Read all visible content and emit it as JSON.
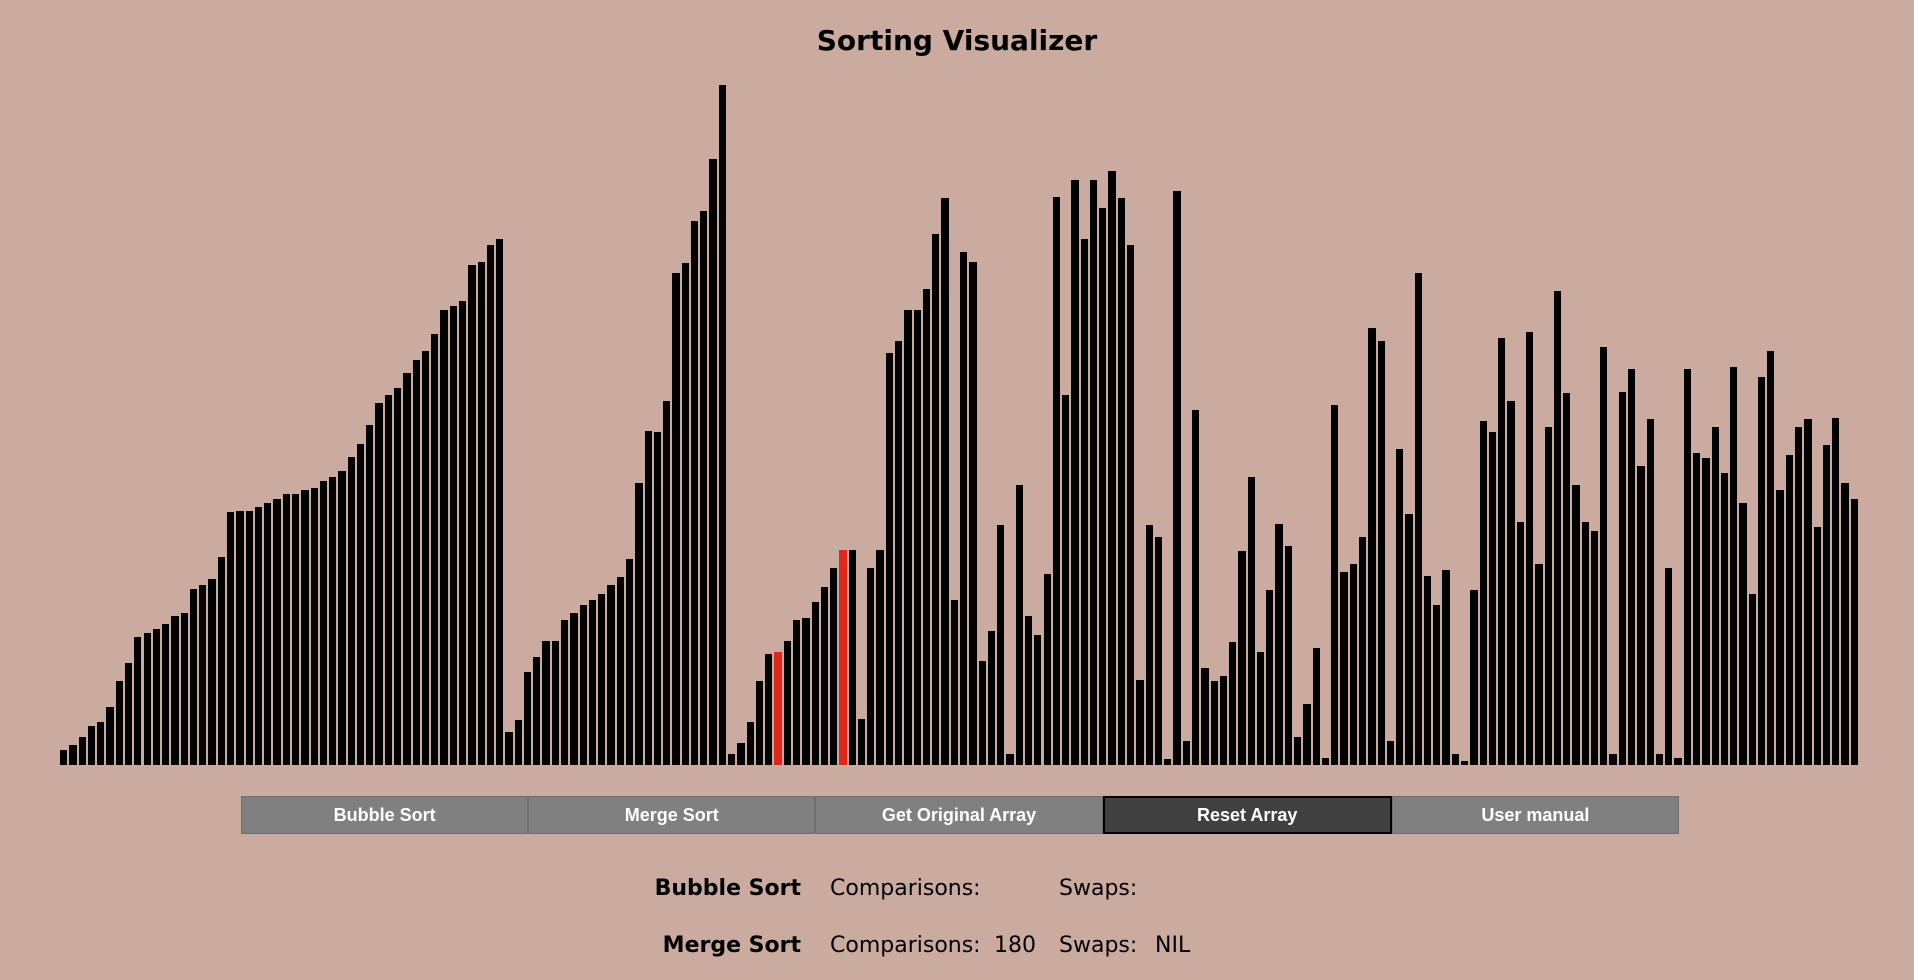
{
  "page": {
    "title": "Sorting Visualizer"
  },
  "chart_data": {
    "type": "bar",
    "values": [
      8,
      11,
      15,
      21,
      23,
      31,
      45,
      55,
      69,
      71,
      73,
      76,
      80,
      82,
      95,
      97,
      100,
      112,
      136,
      137,
      137,
      139,
      141,
      143,
      146,
      146,
      148,
      149,
      153,
      155,
      158,
      166,
      173,
      183,
      195,
      199,
      203,
      211,
      218,
      223,
      232,
      245,
      247,
      250,
      269,
      271,
      280,
      283,
      18,
      24,
      50,
      58,
      67,
      67,
      78,
      82,
      86,
      89,
      92,
      97,
      101,
      111,
      152,
      180,
      179,
      196,
      265,
      270,
      293,
      298,
      326,
      366,
      6,
      12,
      23,
      45,
      60,
      61,
      67,
      78,
      79,
      88,
      96,
      106,
      116,
      116,
      25,
      106,
      116,
      222,
      228,
      245,
      245,
      256,
      286,
      305,
      89,
      276,
      271,
      56,
      72,
      129,
      6,
      151,
      80,
      70,
      103,
      306,
      199,
      315,
      283,
      315,
      300,
      320,
      305,
      280,
      46,
      129,
      123,
      3,
      309,
      13,
      191,
      52,
      45,
      48,
      66,
      115,
      155,
      61,
      94,
      130,
      118,
      15,
      33,
      63,
      4,
      194,
      104,
      108,
      123,
      235,
      228,
      13,
      170,
      135,
      265,
      102,
      86,
      105,
      6,
      2,
      94,
      185,
      179,
      230,
      196,
      131,
      233,
      108,
      182,
      255,
      200,
      151,
      131,
      126,
      225,
      6,
      201,
      213,
      161,
      186,
      6,
      106,
      4,
      213,
      168,
      165,
      182,
      157,
      214,
      141,
      92,
      209,
      223,
      148,
      167,
      182,
      186,
      128,
      172,
      187,
      152,
      143
    ],
    "highlighted_indices": [
      77,
      84
    ]
  },
  "buttons": [
    {
      "label": "Bubble Sort"
    },
    {
      "label": "Merge Sort"
    },
    {
      "label": "Get Original Array"
    },
    {
      "label": "Reset Array"
    },
    {
      "label": "User manual"
    }
  ],
  "stats": {
    "bubble": {
      "name": "Bubble Sort",
      "comparisons_label": "Comparisons:",
      "comparisons_value": "",
      "swaps_label": "Swaps:",
      "swaps_value": ""
    },
    "merge": {
      "name": "Merge Sort",
      "comparisons_label": "Comparisons:",
      "comparisons_value": "180",
      "swaps_label": "Swaps:",
      "swaps_value": "NIL"
    }
  }
}
